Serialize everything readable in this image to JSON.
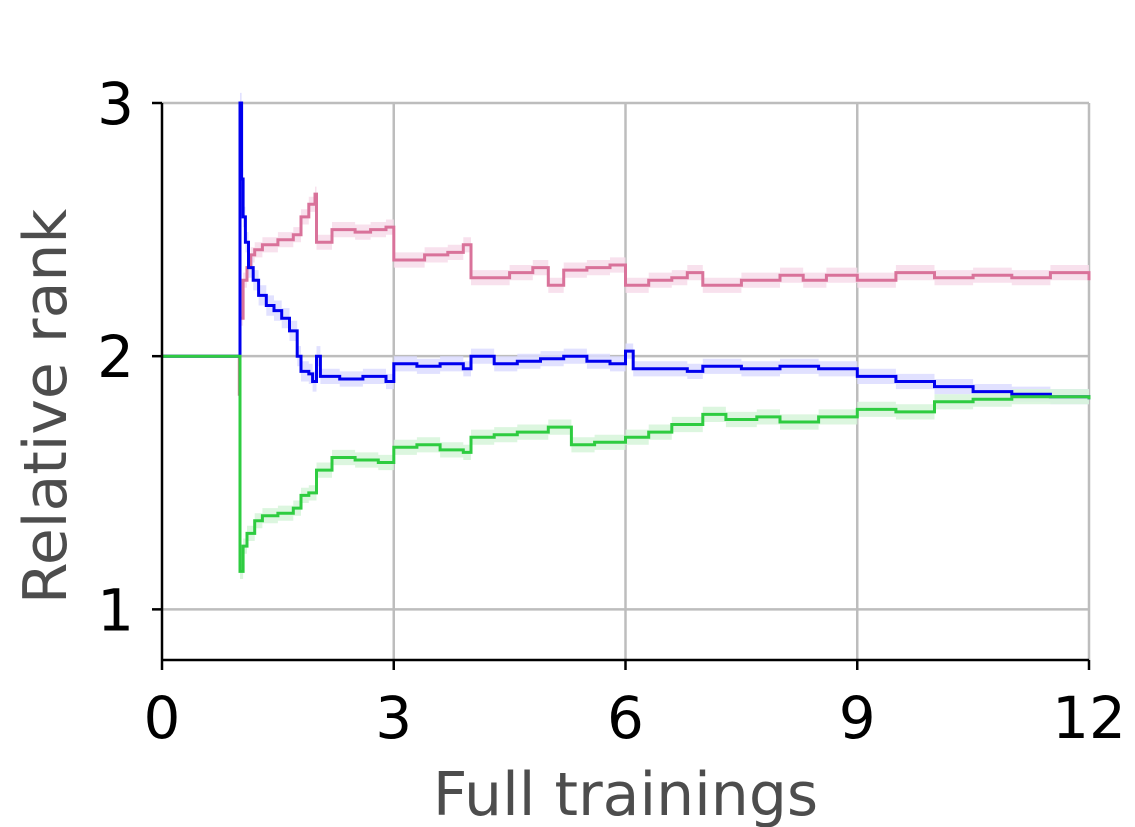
{
  "chart_data": {
    "type": "line",
    "title": "",
    "xlabel": "Full trainings",
    "ylabel": "Relative rank",
    "xlim": [
      0,
      12
    ],
    "ylim": [
      0.8,
      3.0
    ],
    "xticks": [
      0,
      3,
      6,
      9,
      12
    ],
    "yticks": [
      1,
      2,
      3
    ],
    "xtick_labels": [
      "0",
      "3",
      "6",
      "9",
      "12"
    ],
    "ytick_labels": [
      "1",
      "2",
      "3"
    ],
    "grid": true,
    "legend": "none",
    "series": [
      {
        "color": "#d9729a",
        "band_color": "#f7dcea",
        "step": true,
        "x": [
          0,
          1.0,
          1.01,
          1.05,
          1.1,
          1.15,
          1.2,
          1.3,
          1.5,
          1.7,
          1.8,
          1.9,
          1.98,
          2.0,
          2.2,
          2.5,
          2.7,
          2.9,
          3.0,
          3.4,
          3.7,
          3.9,
          4.0,
          4.5,
          4.8,
          5.0,
          5.2,
          5.5,
          5.8,
          6.0,
          6.3,
          6.6,
          6.8,
          7.0,
          7.5,
          8.0,
          8.3,
          8.6,
          9.0,
          9.5,
          10.0,
          10.5,
          11.0,
          11.5,
          12.0
        ],
        "y": [
          2.0,
          1.85,
          2.15,
          2.3,
          2.35,
          2.4,
          2.42,
          2.44,
          2.46,
          2.48,
          2.55,
          2.6,
          2.64,
          2.45,
          2.5,
          2.49,
          2.5,
          2.51,
          2.38,
          2.4,
          2.41,
          2.44,
          2.31,
          2.33,
          2.35,
          2.28,
          2.34,
          2.35,
          2.36,
          2.28,
          2.3,
          2.31,
          2.33,
          2.28,
          2.3,
          2.32,
          2.3,
          2.32,
          2.3,
          2.33,
          2.31,
          2.32,
          2.31,
          2.33,
          2.3
        ],
        "band": [
          0.0,
          0.0,
          0.03,
          0.03,
          0.03,
          0.03,
          0.03,
          0.03,
          0.03,
          0.03,
          0.03,
          0.03,
          0.03,
          0.03,
          0.03,
          0.03,
          0.03,
          0.03,
          0.03,
          0.03,
          0.03,
          0.03,
          0.03,
          0.03,
          0.03,
          0.03,
          0.03,
          0.03,
          0.03,
          0.03,
          0.03,
          0.03,
          0.03,
          0.03,
          0.03,
          0.03,
          0.03,
          0.03,
          0.03,
          0.03,
          0.03,
          0.03,
          0.03,
          0.03,
          0.03
        ]
      },
      {
        "color": "#0000ee",
        "band_color": "#dcdcff",
        "step": true,
        "x": [
          0,
          1.0,
          1.01,
          1.03,
          1.05,
          1.08,
          1.12,
          1.18,
          1.25,
          1.35,
          1.45,
          1.55,
          1.65,
          1.75,
          1.8,
          1.9,
          1.95,
          2.0,
          2.05,
          2.3,
          2.6,
          2.9,
          3.0,
          3.3,
          3.6,
          3.9,
          4.0,
          4.3,
          4.6,
          4.9,
          5.2,
          5.5,
          5.8,
          6.0,
          6.1,
          6.4,
          6.8,
          7.0,
          7.5,
          8.0,
          8.5,
          9.0,
          9.5,
          10.0,
          10.5,
          11.0,
          11.5,
          12.0
        ],
        "y": [
          2.0,
          2.0,
          3.0,
          2.7,
          2.55,
          2.45,
          2.35,
          2.3,
          2.24,
          2.2,
          2.18,
          2.15,
          2.1,
          2.0,
          1.94,
          1.93,
          1.9,
          2.0,
          1.92,
          1.91,
          1.92,
          1.9,
          1.97,
          1.96,
          1.97,
          1.95,
          2.0,
          1.97,
          1.98,
          1.99,
          2.0,
          1.98,
          1.97,
          2.02,
          1.95,
          1.95,
          1.94,
          1.96,
          1.95,
          1.96,
          1.95,
          1.92,
          1.9,
          1.88,
          1.86,
          1.85,
          1.84,
          1.83
        ],
        "band": [
          0.0,
          0.0,
          0.04,
          0.04,
          0.04,
          0.04,
          0.04,
          0.04,
          0.04,
          0.04,
          0.04,
          0.04,
          0.04,
          0.04,
          0.04,
          0.04,
          0.04,
          0.04,
          0.03,
          0.03,
          0.03,
          0.03,
          0.03,
          0.03,
          0.03,
          0.03,
          0.03,
          0.03,
          0.03,
          0.03,
          0.03,
          0.03,
          0.03,
          0.03,
          0.03,
          0.03,
          0.03,
          0.03,
          0.03,
          0.03,
          0.03,
          0.03,
          0.03,
          0.03,
          0.03,
          0.03,
          0.03,
          0.03
        ]
      },
      {
        "color": "#2ecc40",
        "band_color": "#d6f5d9",
        "step": true,
        "x": [
          0,
          1.0,
          1.01,
          1.05,
          1.1,
          1.2,
          1.3,
          1.5,
          1.7,
          1.8,
          1.9,
          2.0,
          2.2,
          2.5,
          2.8,
          3.0,
          3.3,
          3.6,
          3.9,
          4.0,
          4.3,
          4.6,
          5.0,
          5.3,
          5.6,
          6.0,
          6.3,
          6.6,
          7.0,
          7.3,
          7.7,
          8.0,
          8.5,
          9.0,
          9.5,
          10.0,
          10.5,
          11.0,
          11.5,
          12.0
        ],
        "y": [
          2.0,
          2.0,
          1.15,
          1.25,
          1.3,
          1.35,
          1.37,
          1.38,
          1.4,
          1.45,
          1.46,
          1.55,
          1.6,
          1.59,
          1.58,
          1.64,
          1.65,
          1.63,
          1.62,
          1.68,
          1.69,
          1.7,
          1.72,
          1.65,
          1.66,
          1.68,
          1.7,
          1.73,
          1.77,
          1.75,
          1.76,
          1.74,
          1.76,
          1.79,
          1.78,
          1.82,
          1.83,
          1.84,
          1.84,
          1.83
        ],
        "band": [
          0.0,
          0.0,
          0.03,
          0.03,
          0.03,
          0.03,
          0.03,
          0.03,
          0.03,
          0.03,
          0.03,
          0.03,
          0.03,
          0.03,
          0.03,
          0.03,
          0.03,
          0.03,
          0.03,
          0.03,
          0.03,
          0.03,
          0.03,
          0.03,
          0.03,
          0.03,
          0.03,
          0.03,
          0.03,
          0.03,
          0.03,
          0.03,
          0.03,
          0.03,
          0.03,
          0.03,
          0.03,
          0.03,
          0.03,
          0.03
        ]
      }
    ]
  }
}
